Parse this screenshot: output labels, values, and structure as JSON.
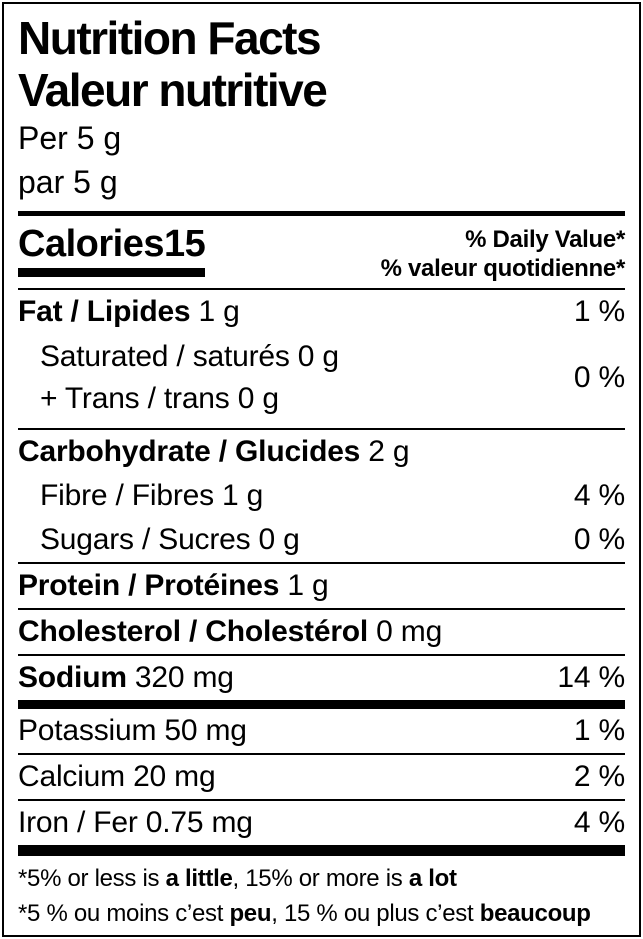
{
  "colors": {
    "ink": "#000000",
    "paper": "#ffffff"
  },
  "header": {
    "title_en": "Nutrition Facts",
    "title_fr": "Valeur nutritive",
    "serving_en": "Per 5 g",
    "serving_fr": "par 5 g"
  },
  "calories": {
    "name": "Calories",
    "value": "15",
    "daily_value_en": "% Daily Value*",
    "daily_value_fr": "% valeur quotidienne*"
  },
  "rows": {
    "fat": {
      "name": "Fat / Lipides",
      "amount": "1 g",
      "dv": "1 %"
    },
    "sat_trans": {
      "line1": "Saturated / saturés 0 g",
      "line2": "+ Trans / trans 0 g",
      "dv": "0 %"
    },
    "carb": {
      "name": "Carbohydrate / Glucides",
      "amount": "2 g"
    },
    "fibre": {
      "name": "Fibre / Fibres",
      "amount": "1 g",
      "dv": "4 %"
    },
    "sugars": {
      "name": "Sugars / Sucres",
      "amount": "0 g",
      "dv": "0 %"
    },
    "protein": {
      "name": "Protein / Protéines",
      "amount": "1 g"
    },
    "cholesterol": {
      "name": "Cholesterol / Cholestérol",
      "amount": "0 mg"
    },
    "sodium": {
      "name": "Sodium",
      "amount": "320 mg",
      "dv": "14 %"
    },
    "potassium": {
      "name": "Potassium",
      "amount": "50 mg",
      "dv": "1 %"
    },
    "calcium": {
      "name": "Calcium",
      "amount": "20 mg",
      "dv": "2 %"
    },
    "iron": {
      "name": "Iron / Fer",
      "amount": "0.75 mg",
      "dv": "4 %"
    }
  },
  "footnotes": {
    "en": {
      "p1": "*5% or less is ",
      "b1": "a little",
      "p2": ", 15% or more is ",
      "b2": "a lot"
    },
    "fr": {
      "p1": "*5 % ou moins c’est ",
      "b1": "peu",
      "p2": ", 15 % ou plus c’est ",
      "b2": "beaucoup"
    }
  }
}
